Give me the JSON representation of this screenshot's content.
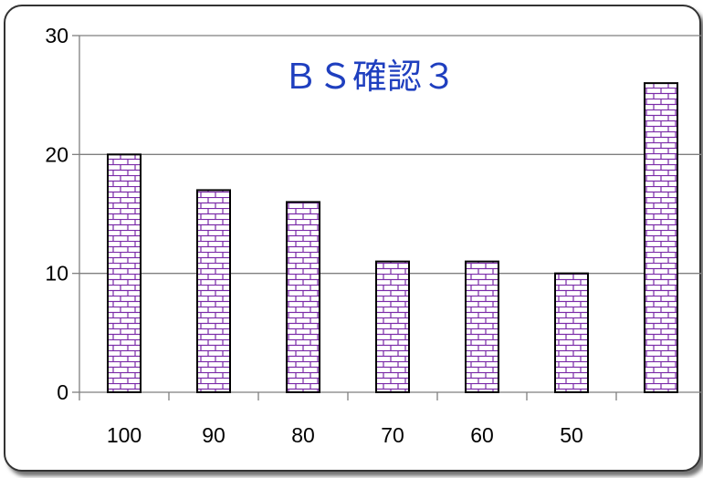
{
  "chart_data": {
    "type": "bar",
    "title": "ＢＳ確認３",
    "categories": [
      "100",
      "90",
      "80",
      "70",
      "60",
      "50",
      ""
    ],
    "values": [
      20,
      17,
      16,
      11,
      11,
      10,
      26
    ],
    "ylim": [
      0,
      30
    ],
    "yticks": [
      "0",
      "10",
      "20",
      "30"
    ],
    "grid": true,
    "legend": "none",
    "colors": {
      "bar_fill": "#ffffff",
      "bar_pattern": "#7a2aa8",
      "bar_outline": "#000000",
      "title": "#1f3fbf",
      "grid": "#7f7f7f"
    }
  }
}
